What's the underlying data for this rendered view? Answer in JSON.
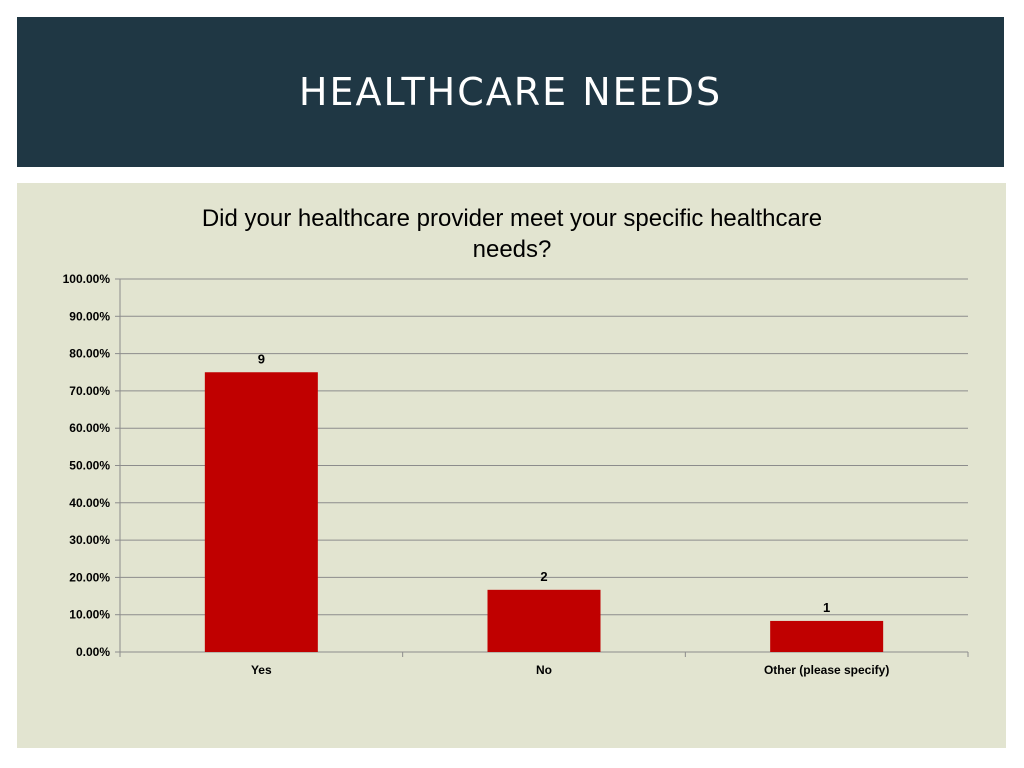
{
  "header": {
    "title": "HEALTHCARE NEEDS"
  },
  "chart_data": {
    "type": "bar",
    "title": "Did your healthcare provider meet your specific healthcare needs?",
    "categories": [
      "Yes",
      "No",
      "Other (please specify)"
    ],
    "values": [
      75.0,
      16.67,
      8.33
    ],
    "data_labels": [
      "9",
      "2",
      "1"
    ],
    "yticks": [
      "0.00%",
      "10.00%",
      "20.00%",
      "30.00%",
      "40.00%",
      "50.00%",
      "60.00%",
      "70.00%",
      "80.00%",
      "90.00%",
      "100.00%"
    ],
    "ylim": [
      0,
      100
    ],
    "grid": true,
    "legend": "none",
    "colors": {
      "bar": "#c00000",
      "grid": "#8c8c8c",
      "axis": "#8c8c8c"
    }
  }
}
